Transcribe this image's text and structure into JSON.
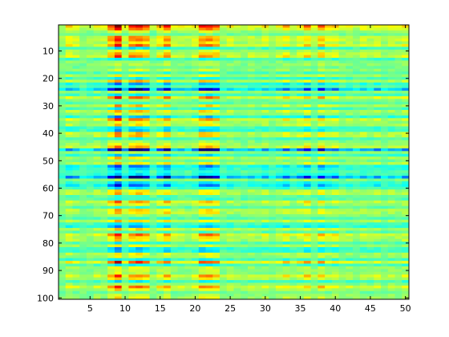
{
  "chart_data": {
    "type": "heatmap",
    "colormap": "jet",
    "title": "",
    "xlabel": "",
    "ylabel": "",
    "n_cols": 50,
    "n_rows": 100,
    "xlim": [
      0.5,
      50.5
    ],
    "ylim": [
      100.5,
      0.5
    ],
    "y_direction": "reversed (1 at top)",
    "grid": false,
    "x_ticks": [
      5,
      10,
      15,
      20,
      25,
      30,
      35,
      40,
      45,
      50
    ],
    "y_ticks": [
      10,
      20,
      30,
      40,
      50,
      60,
      70,
      80,
      90,
      100
    ],
    "value_range": [
      0,
      1
    ],
    "baseline_value": 0.48,
    "column_weights": [
      0.4,
      1.0,
      0.8,
      0.4,
      0.5,
      0.8,
      0.6,
      1.7,
      2.8,
      0.8,
      2.0,
      2.2,
      1.8,
      0.5,
      1.2,
      1.9,
      0.7,
      0.8,
      0.6,
      0.9,
      1.9,
      2.0,
      1.7,
      0.5,
      0.8,
      0.6,
      0.5,
      0.7,
      0.6,
      0.9,
      0.5,
      0.8,
      1.2,
      0.6,
      1.0,
      1.5,
      0.6,
      1.6,
      0.9,
      1.1,
      0.6,
      0.7,
      0.5,
      0.8,
      0.6,
      0.9,
      0.5,
      0.7,
      0.6,
      0.9
    ],
    "row_amplitudes": [
      0.2,
      0.14,
      0.05,
      0.0,
      0.12,
      0.13,
      0.09,
      0.15,
      -0.06,
      0.06,
      0.1,
      0.13,
      -0.05,
      0.03,
      0.04,
      0.01,
      0.05,
      -0.03,
      0.06,
      -0.05,
      0.1,
      -0.09,
      -0.03,
      -0.21,
      0.04,
      -0.06,
      0.14,
      0.02,
      -0.02,
      0.09,
      -0.04,
      0.09,
      0.04,
      -0.09,
      0.13,
      0.06,
      0.08,
      -0.06,
      -0.07,
      0.1,
      0.1,
      -0.04,
      0.03,
      0.06,
      0.11,
      -0.25,
      0.04,
      -0.07,
      0.08,
      0.01,
      0.08,
      -0.12,
      -0.08,
      -0.04,
      -0.07,
      -0.24,
      0.03,
      -0.07,
      -0.13,
      -0.05,
      0.08,
      0.09,
      -0.02,
      -0.03,
      0.11,
      0.06,
      -0.02,
      0.09,
      0.09,
      0.03,
      -0.03,
      0.08,
      -0.05,
      -0.09,
      0.08,
      -0.02,
      0.14,
      0.09,
      0.08,
      -0.04,
      0.06,
      -0.07,
      -0.07,
      0.07,
      0.05,
      -0.05,
      0.16,
      -0.05,
      0.05,
      0.05,
      0.04,
      0.13,
      0.08,
      -0.05,
      0.04,
      0.14,
      0.07,
      0.01,
      0.04,
      0.07
    ],
    "noise_amplitude": 0.06
  }
}
